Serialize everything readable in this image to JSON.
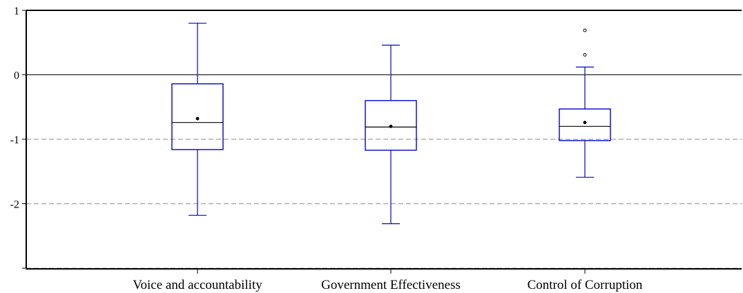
{
  "chart_data": {
    "type": "box",
    "categories": [
      "Voice and accountability",
      "Government Effectiveness",
      "Control of Corruption"
    ],
    "boxes": [
      {
        "category": "Voice and accountability",
        "whisker_low": -2.18,
        "q1": -1.16,
        "median": -0.74,
        "mean": -0.68,
        "q3": -0.14,
        "whisker_high": 0.8,
        "outliers": []
      },
      {
        "category": "Government Effectiveness",
        "whisker_low": -2.31,
        "q1": -1.17,
        "median": -0.81,
        "mean": -0.8,
        "q3": -0.4,
        "whisker_high": 0.46,
        "outliers": []
      },
      {
        "category": "Control of Corruption",
        "whisker_low": -1.59,
        "q1": -1.02,
        "median": -0.8,
        "mean": -0.74,
        "q3": -0.53,
        "whisker_high": 0.12,
        "outliers": [
          0.31,
          0.69
        ]
      }
    ],
    "yticks": [
      "1",
      "0",
      "-1",
      "-2"
    ],
    "ytick_values": [
      1,
      0,
      -1,
      -2
    ],
    "ylim": [
      -3,
      1
    ],
    "reference_lines": [
      {
        "y": 0,
        "style": "solid"
      },
      {
        "y": -1,
        "style": "dashed"
      },
      {
        "y": -2,
        "style": "dashed"
      },
      {
        "y": -3,
        "style": "dashed"
      }
    ],
    "grid": false,
    "legend": "none",
    "colors": {
      "box": "#0000cc",
      "median": "#000000",
      "mean": "#000000",
      "axis": "#000000",
      "dashed": "#a0a0a0"
    }
  }
}
